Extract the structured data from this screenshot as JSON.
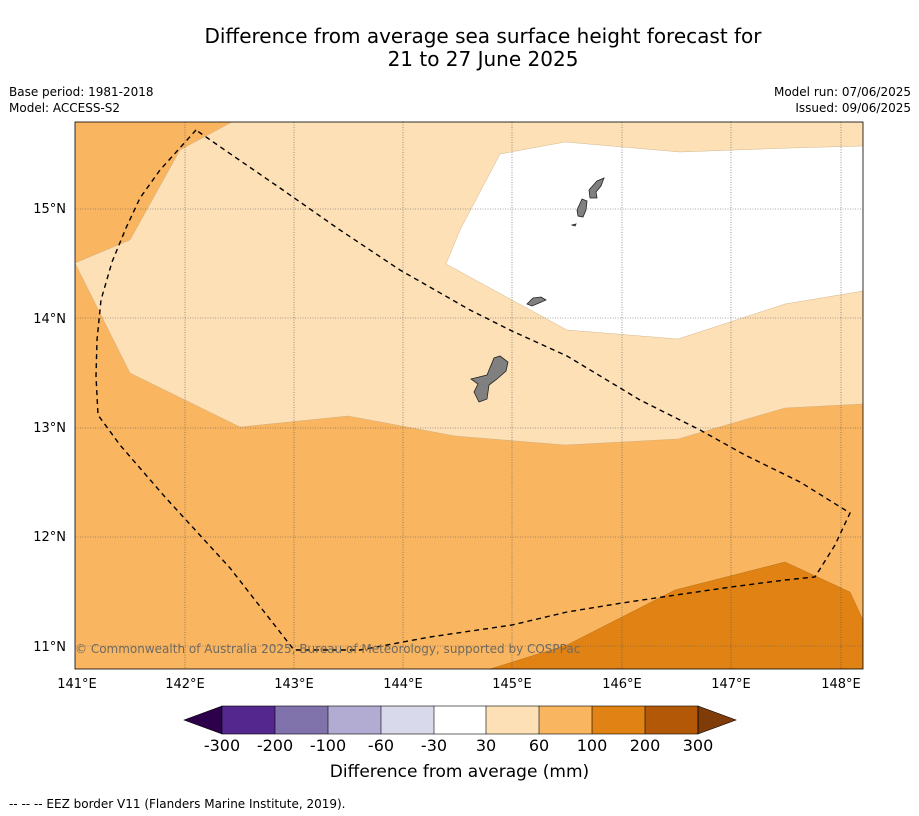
{
  "title": {
    "line1": "Difference from average sea surface height forecast for",
    "line2": "21 to 27 June 2025"
  },
  "meta": {
    "base_period": "Base period: 1981-2018",
    "model": "Model: ACCESS-S2",
    "model_run": "Model run: 07/06/2025",
    "issued": "Issued: 09/06/2025"
  },
  "map": {
    "lon_range": [
      141.0,
      148.2
    ],
    "lat_range": [
      10.8,
      15.8
    ],
    "lat_ticks": [
      "15°N",
      "14°N",
      "13°N",
      "12°N",
      "11°N"
    ],
    "lon_ticks": [
      "141°E",
      "142°E",
      "143°E",
      "144°E",
      "145°E",
      "146°E",
      "147°E",
      "148°E"
    ],
    "copyright": "© Commonwealth of Australia 2025, Bureau of Meteorology, supported by COSPPac",
    "colors": {
      "c30_60": "#fde0b6",
      "c60_100": "#f9b560",
      "c100_200": "#e08214",
      "land": "#808080",
      "neutral": "#ffffff"
    }
  },
  "colorbar": {
    "title": "Difference from average (mm)",
    "ticks": [
      "-300",
      "-200",
      "-100",
      "-60",
      "-30",
      "30",
      "60",
      "100",
      "200",
      "300"
    ],
    "colors": [
      "#54278f",
      "#8073ac",
      "#b2abd2",
      "#d8daeb",
      "#ffffff",
      "#fde0b6",
      "#f9b560",
      "#e08214",
      "#b35806"
    ],
    "under_color": "#2d004b",
    "over_color": "#7f3b08"
  },
  "footer": {
    "eez_note": "--  --  -- EEZ border V11 (Flanders Marine Institute, 2019)."
  }
}
